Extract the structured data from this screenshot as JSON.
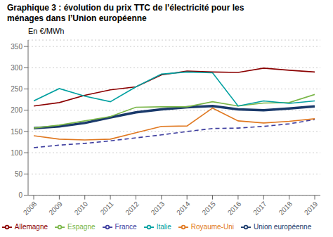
{
  "chart_data": {
    "type": "line",
    "title": "Graphique 3 : évolution du prix TTC de l’électricité pour les\nménages dans l’Union européenne",
    "y_label": "En €/MWh",
    "x": [
      2008,
      2009,
      2010,
      2011,
      2012,
      2013,
      2014,
      2015,
      2016,
      2017,
      2018,
      2019
    ],
    "xlim": [
      2008,
      2019
    ],
    "xticks": [
      2008,
      2009,
      2010,
      2011,
      2012,
      2013,
      2014,
      2015,
      2016,
      2017,
      2018,
      2019
    ],
    "series": [
      {
        "name": "Union européenne",
        "color": "#1a3a6b",
        "line_style": "solid",
        "values": [
          158,
          162,
          170,
          183,
          195,
          202,
          207,
          210,
          202,
          200,
          204,
          209
        ]
      },
      {
        "name": "Allemagne",
        "color": "#8b0000",
        "line_style": "solid",
        "values": [
          210,
          218,
          235,
          248,
          255,
          283,
          292,
          290,
          289,
          299,
          294,
          290
        ]
      },
      {
        "name": "Espagne",
        "color": "#7ab648",
        "line_style": "solid",
        "values": [
          158,
          165,
          175,
          185,
          207,
          208,
          208,
          220,
          210,
          217,
          218,
          237
        ]
      },
      {
        "name": "France",
        "color": "#3c3c9e",
        "line_style": "dashed",
        "values": [
          112,
          118,
          122,
          128,
          135,
          142,
          150,
          157,
          158,
          162,
          168,
          178
        ]
      },
      {
        "name": "Italie",
        "color": "#00a0a0",
        "line_style": "solid",
        "values": [
          222,
          251,
          233,
          220,
          255,
          285,
          290,
          288,
          210,
          222,
          216,
          222
        ]
      },
      {
        "name": "Royaume-Uni",
        "color": "#e07820",
        "line_style": "solid",
        "values": [
          140,
          132,
          130,
          132,
          147,
          162,
          163,
          205,
          175,
          170,
          174,
          180
        ]
      }
    ],
    "ylim": [
      0,
      365
    ],
    "yticks": [
      0,
      50,
      100,
      150,
      200,
      250,
      300,
      350
    ],
    "grid": true,
    "legend": "bottom"
  }
}
